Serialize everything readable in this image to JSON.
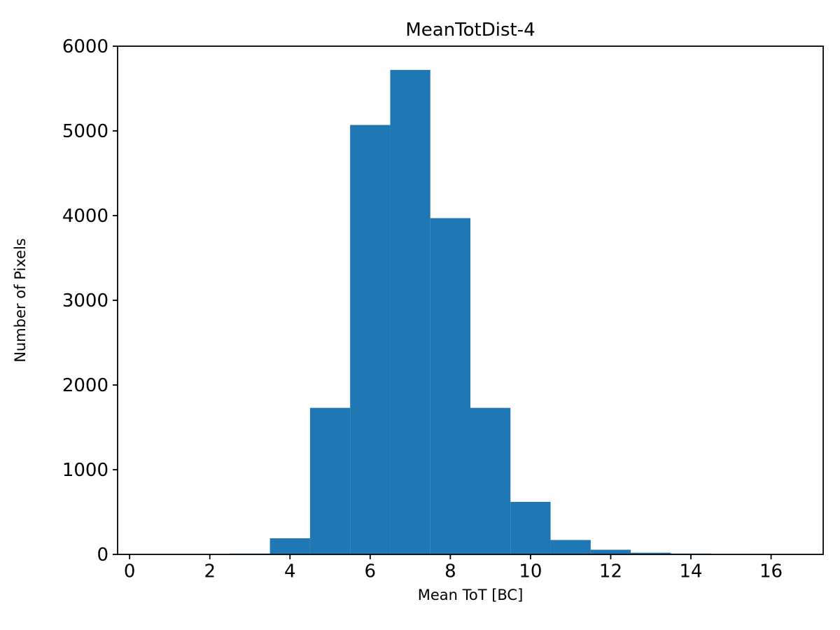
{
  "figure": {
    "background": "#ffffff",
    "spine_color": "#000000",
    "text_color": "#000000"
  },
  "chart_data": {
    "type": "bar",
    "subtype": "histogram",
    "title": "MeanTotDist-4",
    "xlabel": "Mean ToT [BC]",
    "ylabel": "Number of Pixels",
    "bar_color": "#1f77b4",
    "grid": false,
    "legend": "none",
    "xlim": [
      -0.3,
      17.3
    ],
    "ylim": [
      0,
      6000
    ],
    "x_ticks": [
      0,
      2,
      4,
      6,
      8,
      10,
      12,
      14,
      16
    ],
    "y_ticks": [
      0,
      1000,
      2000,
      3000,
      4000,
      5000,
      6000
    ],
    "bin_edges": [
      2.5,
      3.5,
      4.5,
      5.5,
      6.5,
      7.5,
      8.5,
      9.5,
      10.5,
      11.5,
      12.5,
      13.5,
      14.5,
      15.5
    ],
    "values": [
      10,
      190,
      1730,
      5070,
      5720,
      3970,
      1730,
      620,
      170,
      55,
      20,
      10,
      5
    ]
  }
}
